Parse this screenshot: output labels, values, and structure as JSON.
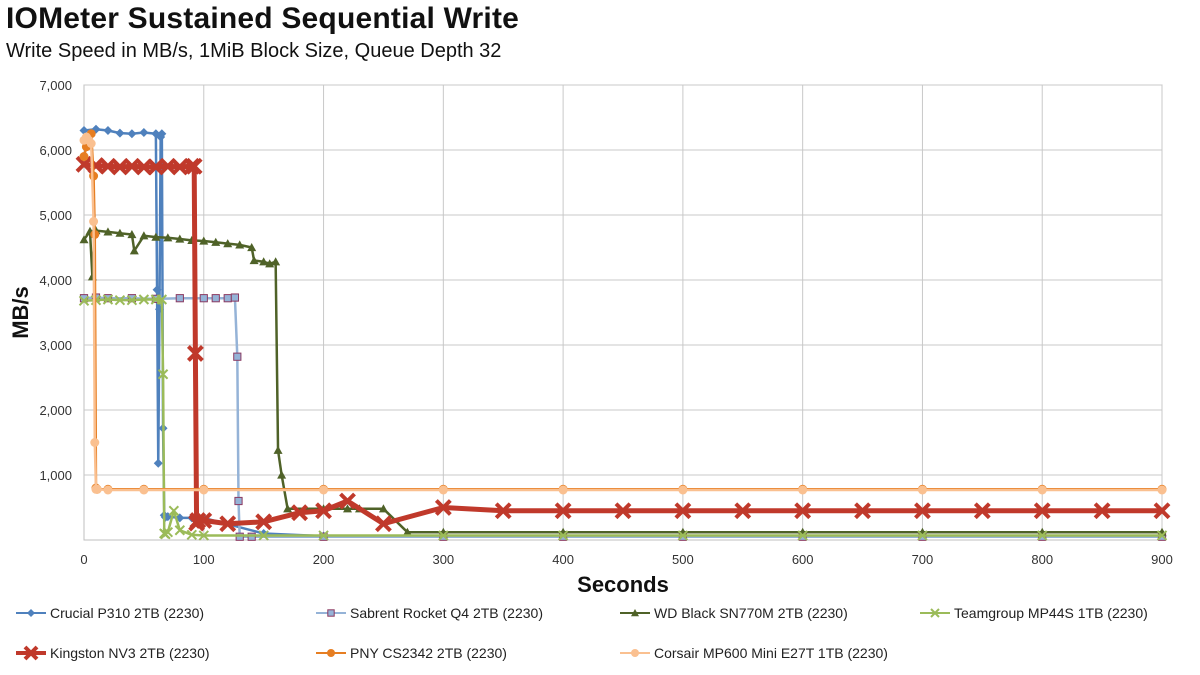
{
  "chart_data": {
    "type": "line",
    "title": "IOMeter Sustained Sequential Write",
    "subtitle": "Write Speed in MB/s, 1MiB Block Size, Queue Depth 32",
    "xlabel": "Seconds",
    "ylabel": "MB/s",
    "xlim": [
      0,
      900
    ],
    "ylim": [
      0,
      7000
    ],
    "x_ticks": [
      0,
      100,
      200,
      300,
      400,
      500,
      600,
      700,
      800,
      900
    ],
    "x_tick_labels": [
      "0",
      "100",
      "200",
      "300",
      "400",
      "500",
      "600",
      "700",
      "800",
      "900"
    ],
    "y_ticks": [
      1000,
      2000,
      3000,
      4000,
      5000,
      6000,
      7000
    ],
    "y_tick_labels": [
      "1,000",
      "2,000",
      "3,000",
      "4,000",
      "5,000",
      "6,000",
      "7,000"
    ],
    "grid": true,
    "legend_position": "bottom",
    "series": [
      {
        "name": "Crucial P310 2TB (2230)",
        "color": "#4f81bd",
        "marker": "diamond",
        "x": [
          0,
          10,
          20,
          30,
          40,
          50,
          60,
          61,
          62,
          63,
          64,
          65,
          66,
          67,
          68,
          70,
          80,
          90,
          100,
          150,
          200,
          300,
          400,
          500,
          600,
          700,
          800,
          900
        ],
        "y": [
          6300,
          6320,
          6300,
          6260,
          6250,
          6270,
          6250,
          3850,
          1180,
          3550,
          6200,
          6250,
          1720,
          380,
          350,
          360,
          340,
          340,
          340,
          100,
          60,
          60,
          60,
          60,
          60,
          60,
          60,
          60
        ]
      },
      {
        "name": "Sabrent Rocket Q4 2TB (2230)",
        "color": "#95b3d7",
        "marker": "square",
        "x": [
          0,
          10,
          20,
          40,
          60,
          80,
          100,
          110,
          120,
          126,
          128,
          129,
          130,
          140,
          200,
          300,
          400,
          500,
          600,
          700,
          800,
          900
        ],
        "y": [
          3720,
          3730,
          3720,
          3720,
          3710,
          3720,
          3720,
          3720,
          3720,
          3730,
          2820,
          600,
          50,
          50,
          50,
          50,
          50,
          50,
          50,
          50,
          50,
          50
        ]
      },
      {
        "name": "WD Black SN770M 2TB (2230)",
        "color": "#4f6228",
        "marker": "triangle",
        "x": [
          0,
          5,
          7,
          9,
          10,
          20,
          30,
          40,
          42,
          50,
          60,
          70,
          80,
          90,
          100,
          110,
          120,
          130,
          140,
          142,
          150,
          155,
          160,
          162,
          165,
          170,
          200,
          220,
          230,
          250,
          270,
          300,
          400,
          500,
          600,
          700,
          800,
          900
        ],
        "y": [
          4620,
          4750,
          4050,
          4770,
          4760,
          4740,
          4720,
          4700,
          4450,
          4680,
          4660,
          4650,
          4630,
          4610,
          4600,
          4580,
          4560,
          4540,
          4500,
          4300,
          4280,
          4250,
          4280,
          1380,
          1000,
          480,
          480,
          480,
          480,
          480,
          120,
          120,
          120,
          120,
          120,
          120,
          120,
          120
        ]
      },
      {
        "name": "Teamgroup MP44S 1TB (2230)",
        "color": "#9bbb59",
        "marker": "x",
        "x": [
          0,
          10,
          20,
          30,
          40,
          50,
          60,
          65,
          66,
          67,
          68,
          70,
          75,
          80,
          90,
          100,
          150,
          200,
          300,
          400,
          500,
          600,
          700,
          800,
          900
        ],
        "y": [
          3680,
          3690,
          3700,
          3690,
          3690,
          3700,
          3700,
          3700,
          2550,
          100,
          90,
          120,
          450,
          150,
          80,
          70,
          70,
          70,
          70,
          70,
          70,
          70,
          70,
          70,
          70
        ]
      },
      {
        "name": "Kingston NV3 2TB (2230)",
        "color": "#c0392b",
        "marker": "x",
        "x": [
          0,
          10,
          20,
          30,
          40,
          50,
          60,
          70,
          80,
          90,
          92,
          93,
          94,
          95,
          100,
          120,
          150,
          180,
          200,
          220,
          250,
          300,
          350,
          400,
          450,
          500,
          550,
          600,
          650,
          700,
          750,
          800,
          850,
          900
        ],
        "y": [
          5780,
          5760,
          5750,
          5740,
          5750,
          5740,
          5740,
          5750,
          5740,
          5750,
          5750,
          2870,
          260,
          300,
          300,
          250,
          280,
          420,
          450,
          600,
          250,
          500,
          450,
          450,
          450,
          450,
          450,
          450,
          450,
          450,
          450,
          450,
          450,
          450
        ]
      },
      {
        "name": "PNY CS2342 2TB (2230)",
        "color": "#e67e22",
        "marker": "circle",
        "x": [
          0,
          2,
          4,
          6,
          8,
          9,
          10,
          11,
          20,
          50,
          100,
          200,
          300,
          400,
          500,
          600,
          700,
          800,
          900
        ],
        "y": [
          5900,
          6050,
          6150,
          6250,
          5600,
          4700,
          800,
          780,
          780,
          780,
          780,
          780,
          780,
          780,
          780,
          780,
          780,
          780,
          780
        ]
      },
      {
        "name": "Corsair MP600 Mini E27T 1TB (2230)",
        "color": "#fac090",
        "marker": "circle",
        "x": [
          0,
          2,
          4,
          6,
          8,
          9,
          10,
          11,
          20,
          50,
          100,
          200,
          300,
          400,
          500,
          600,
          700,
          800,
          900
        ],
        "y": [
          6150,
          6200,
          6150,
          6100,
          4900,
          1500,
          780,
          780,
          770,
          770,
          770,
          770,
          770,
          770,
          770,
          770,
          770,
          770,
          770
        ]
      }
    ]
  }
}
